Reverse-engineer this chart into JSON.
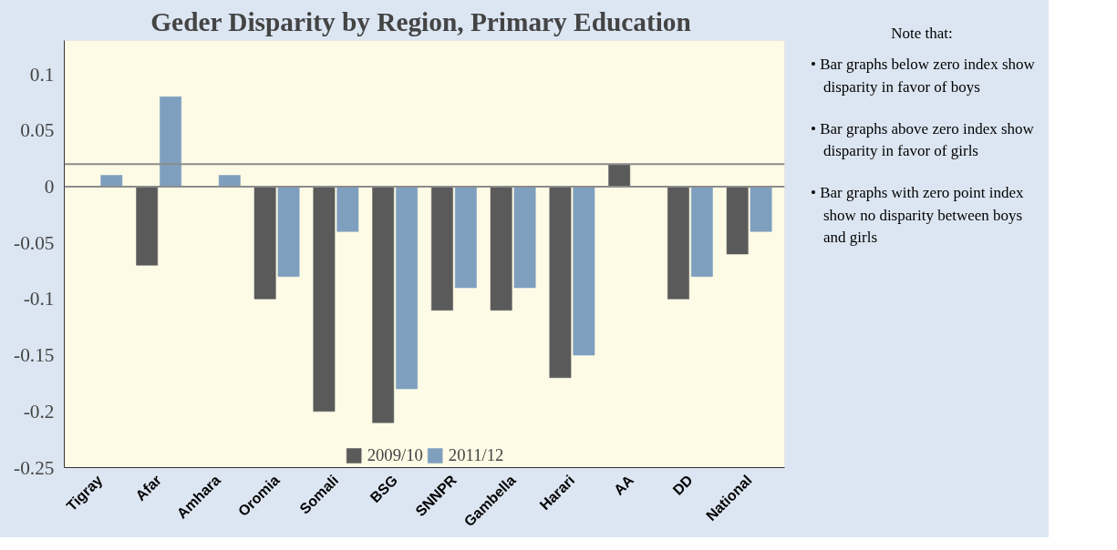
{
  "chart_data": {
    "type": "bar",
    "title": "Geder Disparity  by Region, Primary Education",
    "categories": [
      "Tigray",
      "Afar",
      "Amhara",
      "Oromia",
      "Somali",
      "BSG",
      "SNNPR",
      "Gambella",
      "Harari",
      "AA",
      "DD",
      "National"
    ],
    "series": [
      {
        "name": "2009/10",
        "color": "#5a5a5a",
        "values": [
          0,
          -0.07,
          0,
          -0.1,
          -0.2,
          -0.21,
          -0.11,
          -0.11,
          -0.17,
          0.02,
          -0.1,
          -0.06
        ]
      },
      {
        "name": "2011/12",
        "color": "#7f9fbf",
        "values": [
          0.01,
          0.08,
          0.01,
          -0.08,
          -0.04,
          -0.18,
          -0.09,
          -0.09,
          -0.15,
          0,
          -0.08,
          -0.04
        ]
      }
    ],
    "ylim": [
      -0.25,
      0.13
    ],
    "yticks": [
      -0.25,
      -0.2,
      -0.15,
      -0.1,
      -0.05,
      0,
      0.05,
      0.1
    ],
    "ref_lines": [
      {
        "axis": "y",
        "value": 0,
        "color": "#8c8c8c"
      },
      {
        "axis": "y",
        "value": 0.02,
        "color": "#8c8c8c"
      }
    ],
    "legend": "bottom",
    "annotations": [
      "Note that:",
      "• Bar graphs below zero index show disparity in favor of boys",
      "• Bar graphs above zero index show disparity in favor of girls",
      "• Bar graphs with zero point index  show no disparity between boys and girls"
    ]
  }
}
